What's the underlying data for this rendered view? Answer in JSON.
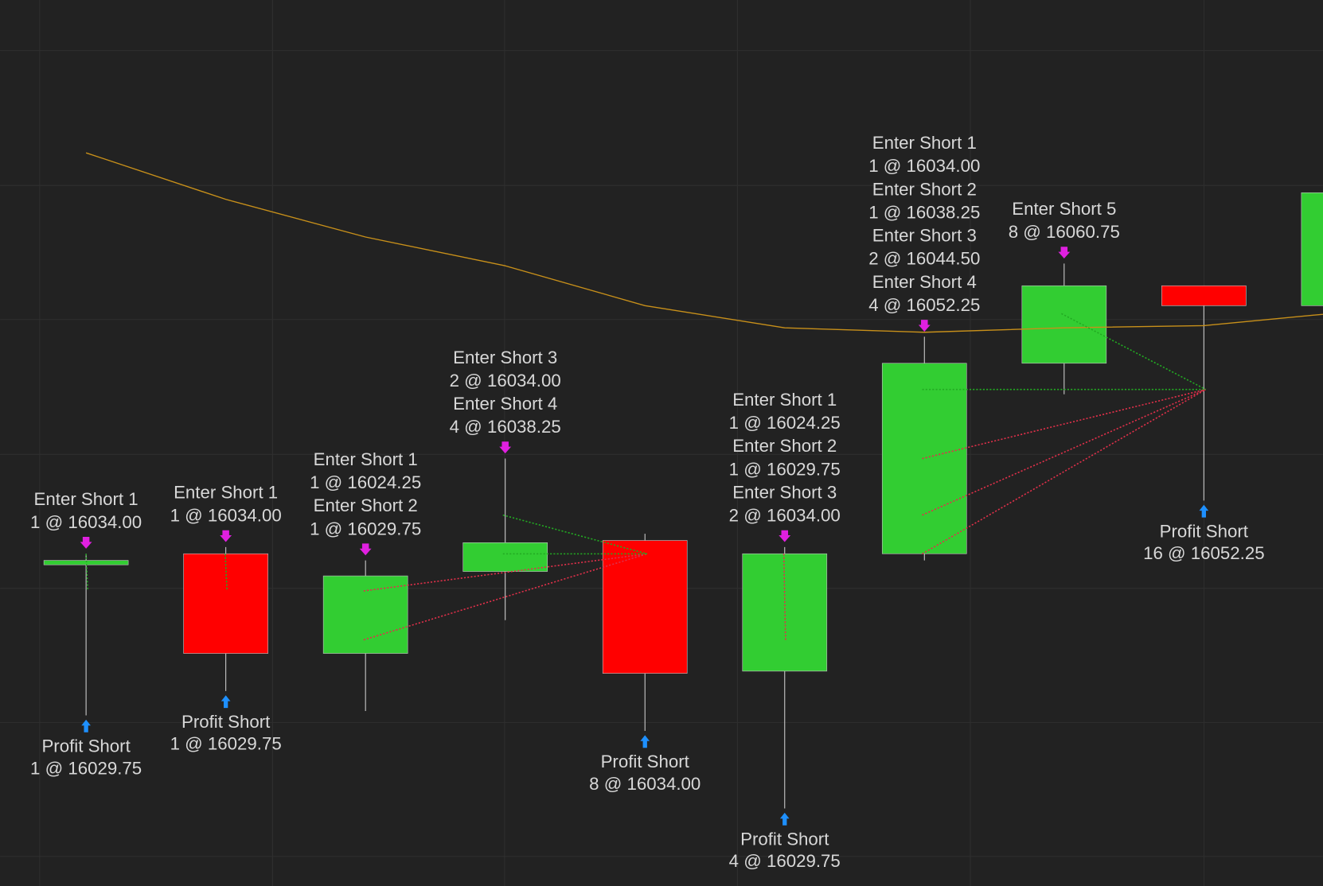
{
  "chart_data": {
    "type": "candlestick",
    "categories": [
      null,
      null,
      null,
      null,
      null,
      null,
      null,
      null,
      null,
      null
    ],
    "open": [
      16036.25,
      16037.5,
      16026.25,
      16035.5,
      16039.0,
      16024.25,
      16037.5,
      16059.0,
      16067.75,
      16065.5
    ],
    "high": [
      16037.5,
      16038.25,
      16036.75,
      16048.25,
      16039.75,
      16038.25,
      16062.0,
      16070.25,
      16067.75,
      16078.25
    ],
    "low": [
      16019.25,
      16022.0,
      16019.75,
      16030.0,
      16017.5,
      16008.75,
      16036.75,
      16055.5,
      16043.5,
      16065.5
    ],
    "close": [
      16036.75,
      16026.25,
      16035.0,
      16038.75,
      16024.0,
      16037.5,
      16059.0,
      16067.75,
      16065.5,
      16078.25
    ],
    "up_color": "#32cd32",
    "down_color": "#ff0000",
    "moving_average": {
      "color": "#c8901a",
      "values": [
        16082.75,
        16077.5,
        16073.25,
        16070.0,
        16065.5,
        16063.0,
        16062.5,
        16063.0,
        16063.25,
        16064.75
      ]
    },
    "ylim": [
      16000,
      16100
    ],
    "labels_above": [
      [
        "Enter Short 1",
        "1 @ 16034.00"
      ],
      [
        "Enter Short 1",
        "1 @ 16034.00"
      ],
      [
        "Enter Short 1",
        "1 @ 16024.25",
        "Enter Short 2",
        "1 @ 16029.75"
      ],
      [
        "Enter Short 3",
        "2 @ 16034.00",
        "Enter Short 4",
        "4 @ 16038.25"
      ],
      [],
      [
        "Enter Short 1",
        "1 @ 16024.25",
        "Enter Short 2",
        "1 @ 16029.75",
        "Enter Short 3",
        "2 @ 16034.00"
      ],
      [
        "Enter Short 1",
        "1 @ 16034.00",
        "Enter Short 2",
        "1 @ 16038.25",
        "Enter Short 3",
        "2 @ 16044.50",
        "Enter Short 4",
        "4 @ 16052.25"
      ],
      [
        "Enter Short 5",
        "8 @ 16060.75"
      ],
      [],
      []
    ],
    "labels_below": [
      [
        "Profit Short",
        "1 @ 16029.75"
      ],
      [
        "Profit Short",
        "1 @ 16029.75"
      ],
      [],
      [],
      [
        "Profit Short",
        "8 @ 16034.00"
      ],
      [
        "Profit Short",
        "4 @ 16029.75"
      ],
      [],
      [],
      [
        "Profit Short",
        "16 @ 16052.25"
      ],
      []
    ]
  }
}
